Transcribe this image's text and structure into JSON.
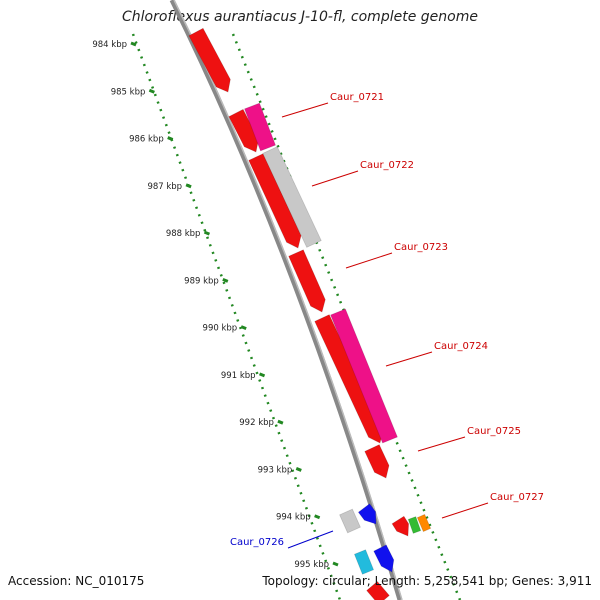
{
  "title": "Chloroflexus aurantiacus J-10-fl, complete genome",
  "footer": {
    "accession": "Accession: NC_010175",
    "topology": "Topology: circular; Length: 5,258,541 bp; Genes: 3,911"
  },
  "scale_ticks": [
    "984 kbp",
    "985 kbp",
    "986 kbp",
    "987 kbp",
    "988 kbp",
    "989 kbp",
    "990 kbp",
    "991 kbp",
    "992 kbp",
    "993 kbp",
    "994 kbp",
    "995 kbp"
  ],
  "gene_labels": [
    {
      "name": "Caur_0721",
      "color": "#cc0000"
    },
    {
      "name": "Caur_0722",
      "color": "#cc0000"
    },
    {
      "name": "Caur_0723",
      "color": "#cc0000"
    },
    {
      "name": "Caur_0724",
      "color": "#cc0000"
    },
    {
      "name": "Caur_0725",
      "color": "#cc0000"
    },
    {
      "name": "Caur_0727",
      "color": "#cc0000"
    },
    {
      "name": "Caur_0726",
      "color": "#0000cc"
    }
  ],
  "colors": {
    "red": "#ee1111",
    "magenta": "#ee1188",
    "gray": "#c8c8c8",
    "blue": "#1111ee",
    "green": "#33bb33",
    "orange": "#ff8800",
    "cyan": "#22bbdd",
    "backbone": "#888888",
    "scale": "#228822"
  }
}
